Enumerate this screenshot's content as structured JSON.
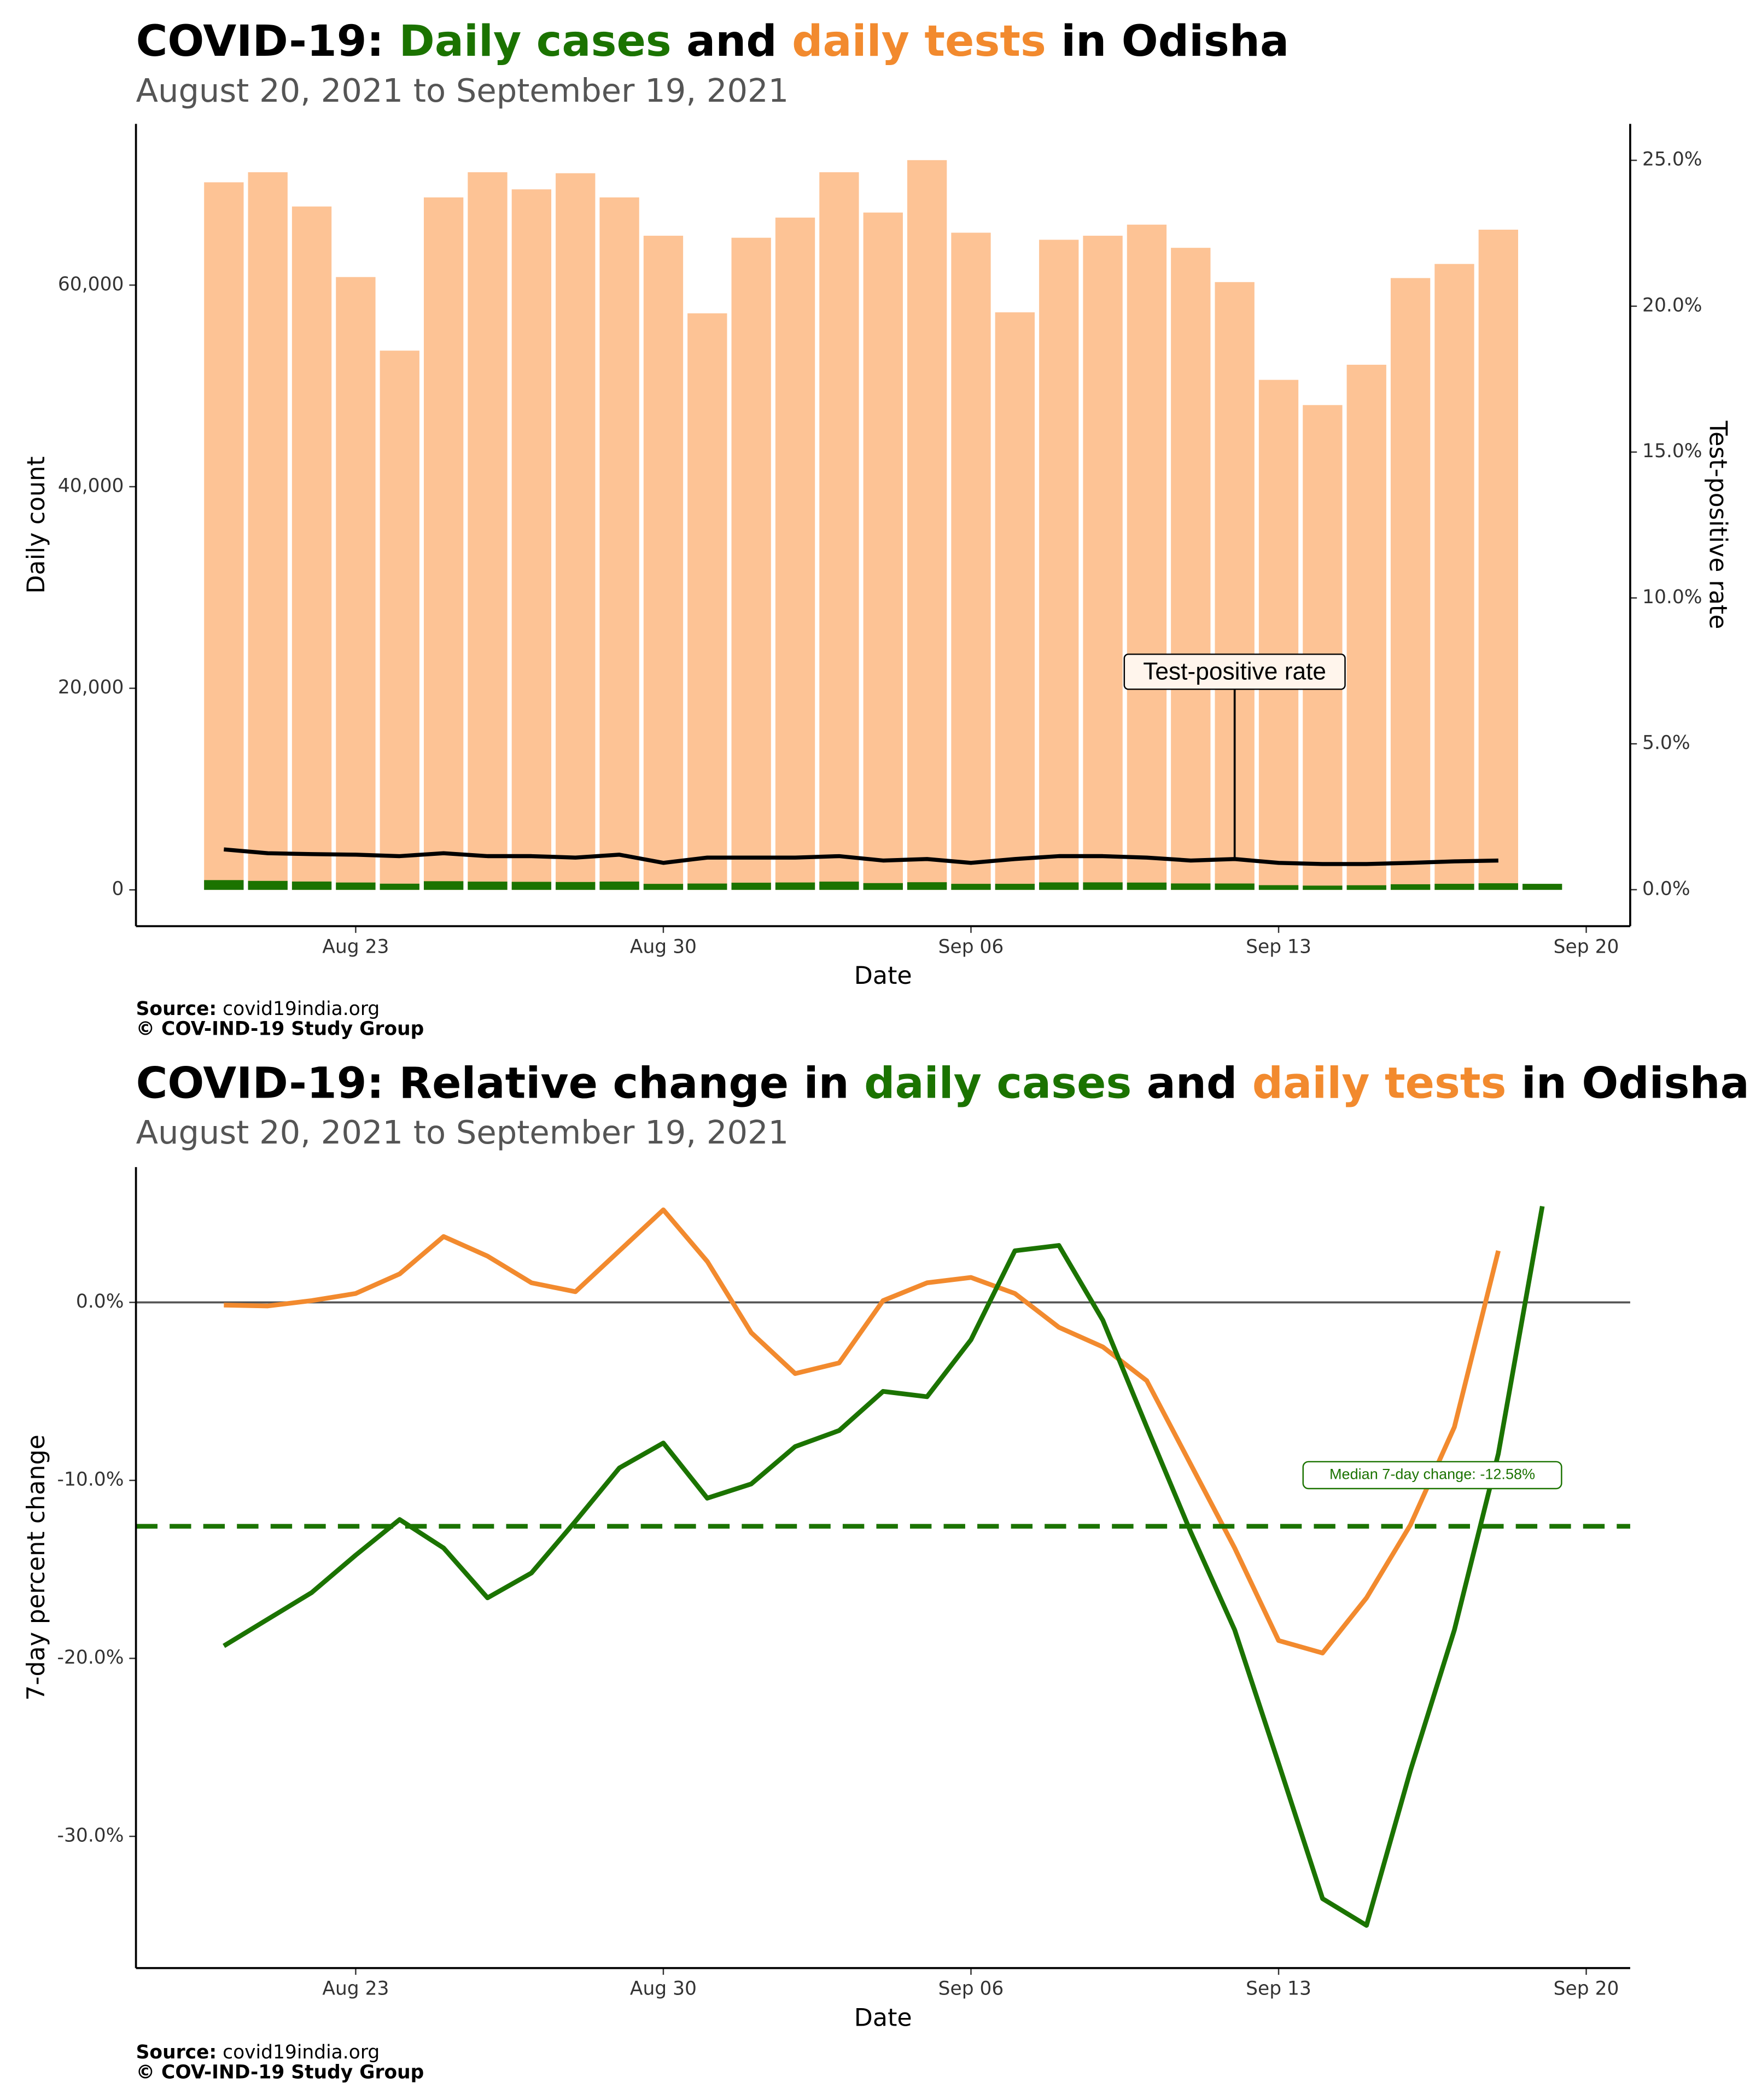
{
  "chart_data": [
    {
      "type": "bar",
      "title": [
        {
          "text": "COVID-19: ",
          "color": "#000000"
        },
        {
          "text": "Daily cases",
          "color": "#1b7300"
        },
        {
          "text": " and ",
          "color": "#000000"
        },
        {
          "text": "daily tests",
          "color": "#f28a2e"
        },
        {
          "text": " in Odisha",
          "color": "#000000"
        }
      ],
      "subtitle": "August 20, 2021 to September 19, 2021",
      "x_label": "Date",
      "y_label": "Daily count",
      "y2_label": "Test-positive rate",
      "x": [
        "2021-08-20",
        "2021-08-21",
        "2021-08-22",
        "2021-08-23",
        "2021-08-24",
        "2021-08-25",
        "2021-08-26",
        "2021-08-27",
        "2021-08-28",
        "2021-08-29",
        "2021-08-30",
        "2021-08-31",
        "2021-09-01",
        "2021-09-02",
        "2021-09-03",
        "2021-09-04",
        "2021-09-05",
        "2021-09-06",
        "2021-09-07",
        "2021-09-08",
        "2021-09-09",
        "2021-09-10",
        "2021-09-11",
        "2021-09-12",
        "2021-09-13",
        "2021-09-14",
        "2021-09-15",
        "2021-09-16",
        "2021-09-17",
        "2021-09-18",
        "2021-09-19"
      ],
      "xlim": [
        "2021-08-18",
        "2021-09-21"
      ],
      "xticks": [
        {
          "value": "2021-08-23",
          "label": "Aug 23"
        },
        {
          "value": "2021-08-30",
          "label": "Aug 30"
        },
        {
          "value": "2021-09-06",
          "label": "Sep 06"
        },
        {
          "value": "2021-09-13",
          "label": "Sep 13"
        },
        {
          "value": "2021-09-20",
          "label": "Sep 20"
        }
      ],
      "ylim": [
        -3600,
        76000
      ],
      "yticks": [
        0,
        {
          "value": 20000,
          "label": "20,000"
        },
        {
          "value": 40000,
          "label": "40,000"
        },
        {
          "value": 60000,
          "label": "60,000"
        }
      ],
      "y2lim": [
        -1.25,
        26.25
      ],
      "y2ticks": [
        {
          "value": 0,
          "label": "0.0%"
        },
        {
          "value": 5,
          "label": "5.0%"
        },
        {
          "value": 10,
          "label": "10.0%"
        },
        {
          "value": 15,
          "label": "15.0%"
        },
        {
          "value": 20,
          "label": "20.0%"
        },
        {
          "value": 25,
          "label": "25.0%"
        }
      ],
      "series": [
        {
          "color": "#fdc395",
          "values": [
            70200,
            71200,
            67800,
            60800,
            53500,
            68700,
            71200,
            69500,
            71100,
            68700,
            64900,
            57200,
            64700,
            66700,
            71200,
            67200,
            72400,
            65200,
            57300,
            64500,
            64900,
            66000,
            63700,
            60300,
            50600,
            48100,
            52100,
            60700,
            62100,
            65500,
            null
          ]
        },
        {
          "color": "#1b7300",
          "values": [
            969,
            890,
            827,
            730,
            615,
            859,
            819,
            799,
            782,
            824,
            597,
            629,
            712,
            734,
            819,
            672,
            760,
            600,
            602,
            742,
            746,
            726,
            637,
            633,
            466,
            423,
            458,
            558,
            602,
            655,
            600
          ]
        },
        {
          "type": "line",
          "axis": "y2",
          "color": "#000000",
          "values": [
            1.38,
            1.25,
            1.22,
            1.2,
            1.15,
            1.25,
            1.15,
            1.15,
            1.1,
            1.2,
            0.92,
            1.1,
            1.1,
            1.1,
            1.15,
            1.0,
            1.05,
            0.92,
            1.05,
            1.15,
            1.15,
            1.1,
            1.0,
            1.05,
            0.92,
            0.88,
            0.88,
            0.92,
            0.97,
            1.0,
            null
          ]
        }
      ],
      "annotation": "Test-positive rate",
      "source_label": "Source:",
      "source": "covid19india.org",
      "credit": "© COV-IND-19 Study Group"
    },
    {
      "type": "line",
      "title": [
        {
          "text": "COVID-19: Relative change in ",
          "color": "#000000"
        },
        {
          "text": "daily cases",
          "color": "#1b7300"
        },
        {
          "text": " and ",
          "color": "#000000"
        },
        {
          "text": "daily tests",
          "color": "#f28a2e"
        },
        {
          "text": " in Odisha",
          "color": "#000000"
        }
      ],
      "subtitle": "August 20, 2021 to September 19, 2021",
      "x_label": "Date",
      "y_label": "7-day percent change",
      "x": [
        "2021-08-20",
        "2021-08-21",
        "2021-08-22",
        "2021-08-23",
        "2021-08-24",
        "2021-08-25",
        "2021-08-26",
        "2021-08-27",
        "2021-08-28",
        "2021-08-29",
        "2021-08-30",
        "2021-08-31",
        "2021-09-01",
        "2021-09-02",
        "2021-09-03",
        "2021-09-04",
        "2021-09-05",
        "2021-09-06",
        "2021-09-07",
        "2021-09-08",
        "2021-09-09",
        "2021-09-10",
        "2021-09-11",
        "2021-09-12",
        "2021-09-13",
        "2021-09-14",
        "2021-09-15",
        "2021-09-16",
        "2021-09-17",
        "2021-09-18",
        "2021-09-19"
      ],
      "xlim": [
        "2021-08-18",
        "2021-09-21"
      ],
      "xticks": [
        {
          "value": "2021-08-23",
          "label": "Aug 23"
        },
        {
          "value": "2021-08-30",
          "label": "Aug 30"
        },
        {
          "value": "2021-09-06",
          "label": "Sep 06"
        },
        {
          "value": "2021-09-13",
          "label": "Sep 13"
        },
        {
          "value": "2021-09-20",
          "label": "Sep 20"
        }
      ],
      "ylim": [
        -37.4,
        7.6
      ],
      "yticks": [
        {
          "value": -30,
          "label": "-30.0%"
        },
        {
          "value": -20,
          "label": "-20.0%"
        },
        {
          "value": -10,
          "label": "-10.0%"
        },
        {
          "value": 0,
          "label": "0.0%"
        }
      ],
      "hline": 0,
      "series": [
        {
          "color": "#f28a2e",
          "values": [
            -0.15,
            -0.2,
            0.1,
            0.5,
            1.6,
            3.7,
            2.6,
            1.1,
            0.6,
            2.9,
            5.2,
            2.3,
            -1.7,
            -4.0,
            -3.4,
            0.1,
            1.1,
            1.4,
            0.5,
            -1.4,
            -2.5,
            -4.4,
            -9.1,
            -13.8,
            -19.0,
            -19.7,
            -16.6,
            -12.5,
            -7.0,
            2.9,
            null
          ]
        },
        {
          "color": "#1b7300",
          "values": [
            -19.3,
            -17.8,
            -16.3,
            -14.2,
            -12.2,
            -13.8,
            -16.6,
            -15.2,
            -12.3,
            -9.3,
            -7.9,
            -11.0,
            -10.2,
            -8.1,
            -7.2,
            -5.0,
            -5.3,
            -2.1,
            2.9,
            3.2,
            -1.0,
            -7.0,
            -12.9,
            -18.4,
            -25.9,
            -33.5,
            -35.0,
            -26.3,
            -18.4,
            -8.5,
            5.4
          ]
        }
      ],
      "median": {
        "value": -12.58,
        "color": "#1b7300",
        "label": "Median 7-day change: -12.58%"
      },
      "source_label": "Source:",
      "source": "covid19india.org",
      "credit": "© COV-IND-19 Study Group"
    }
  ]
}
